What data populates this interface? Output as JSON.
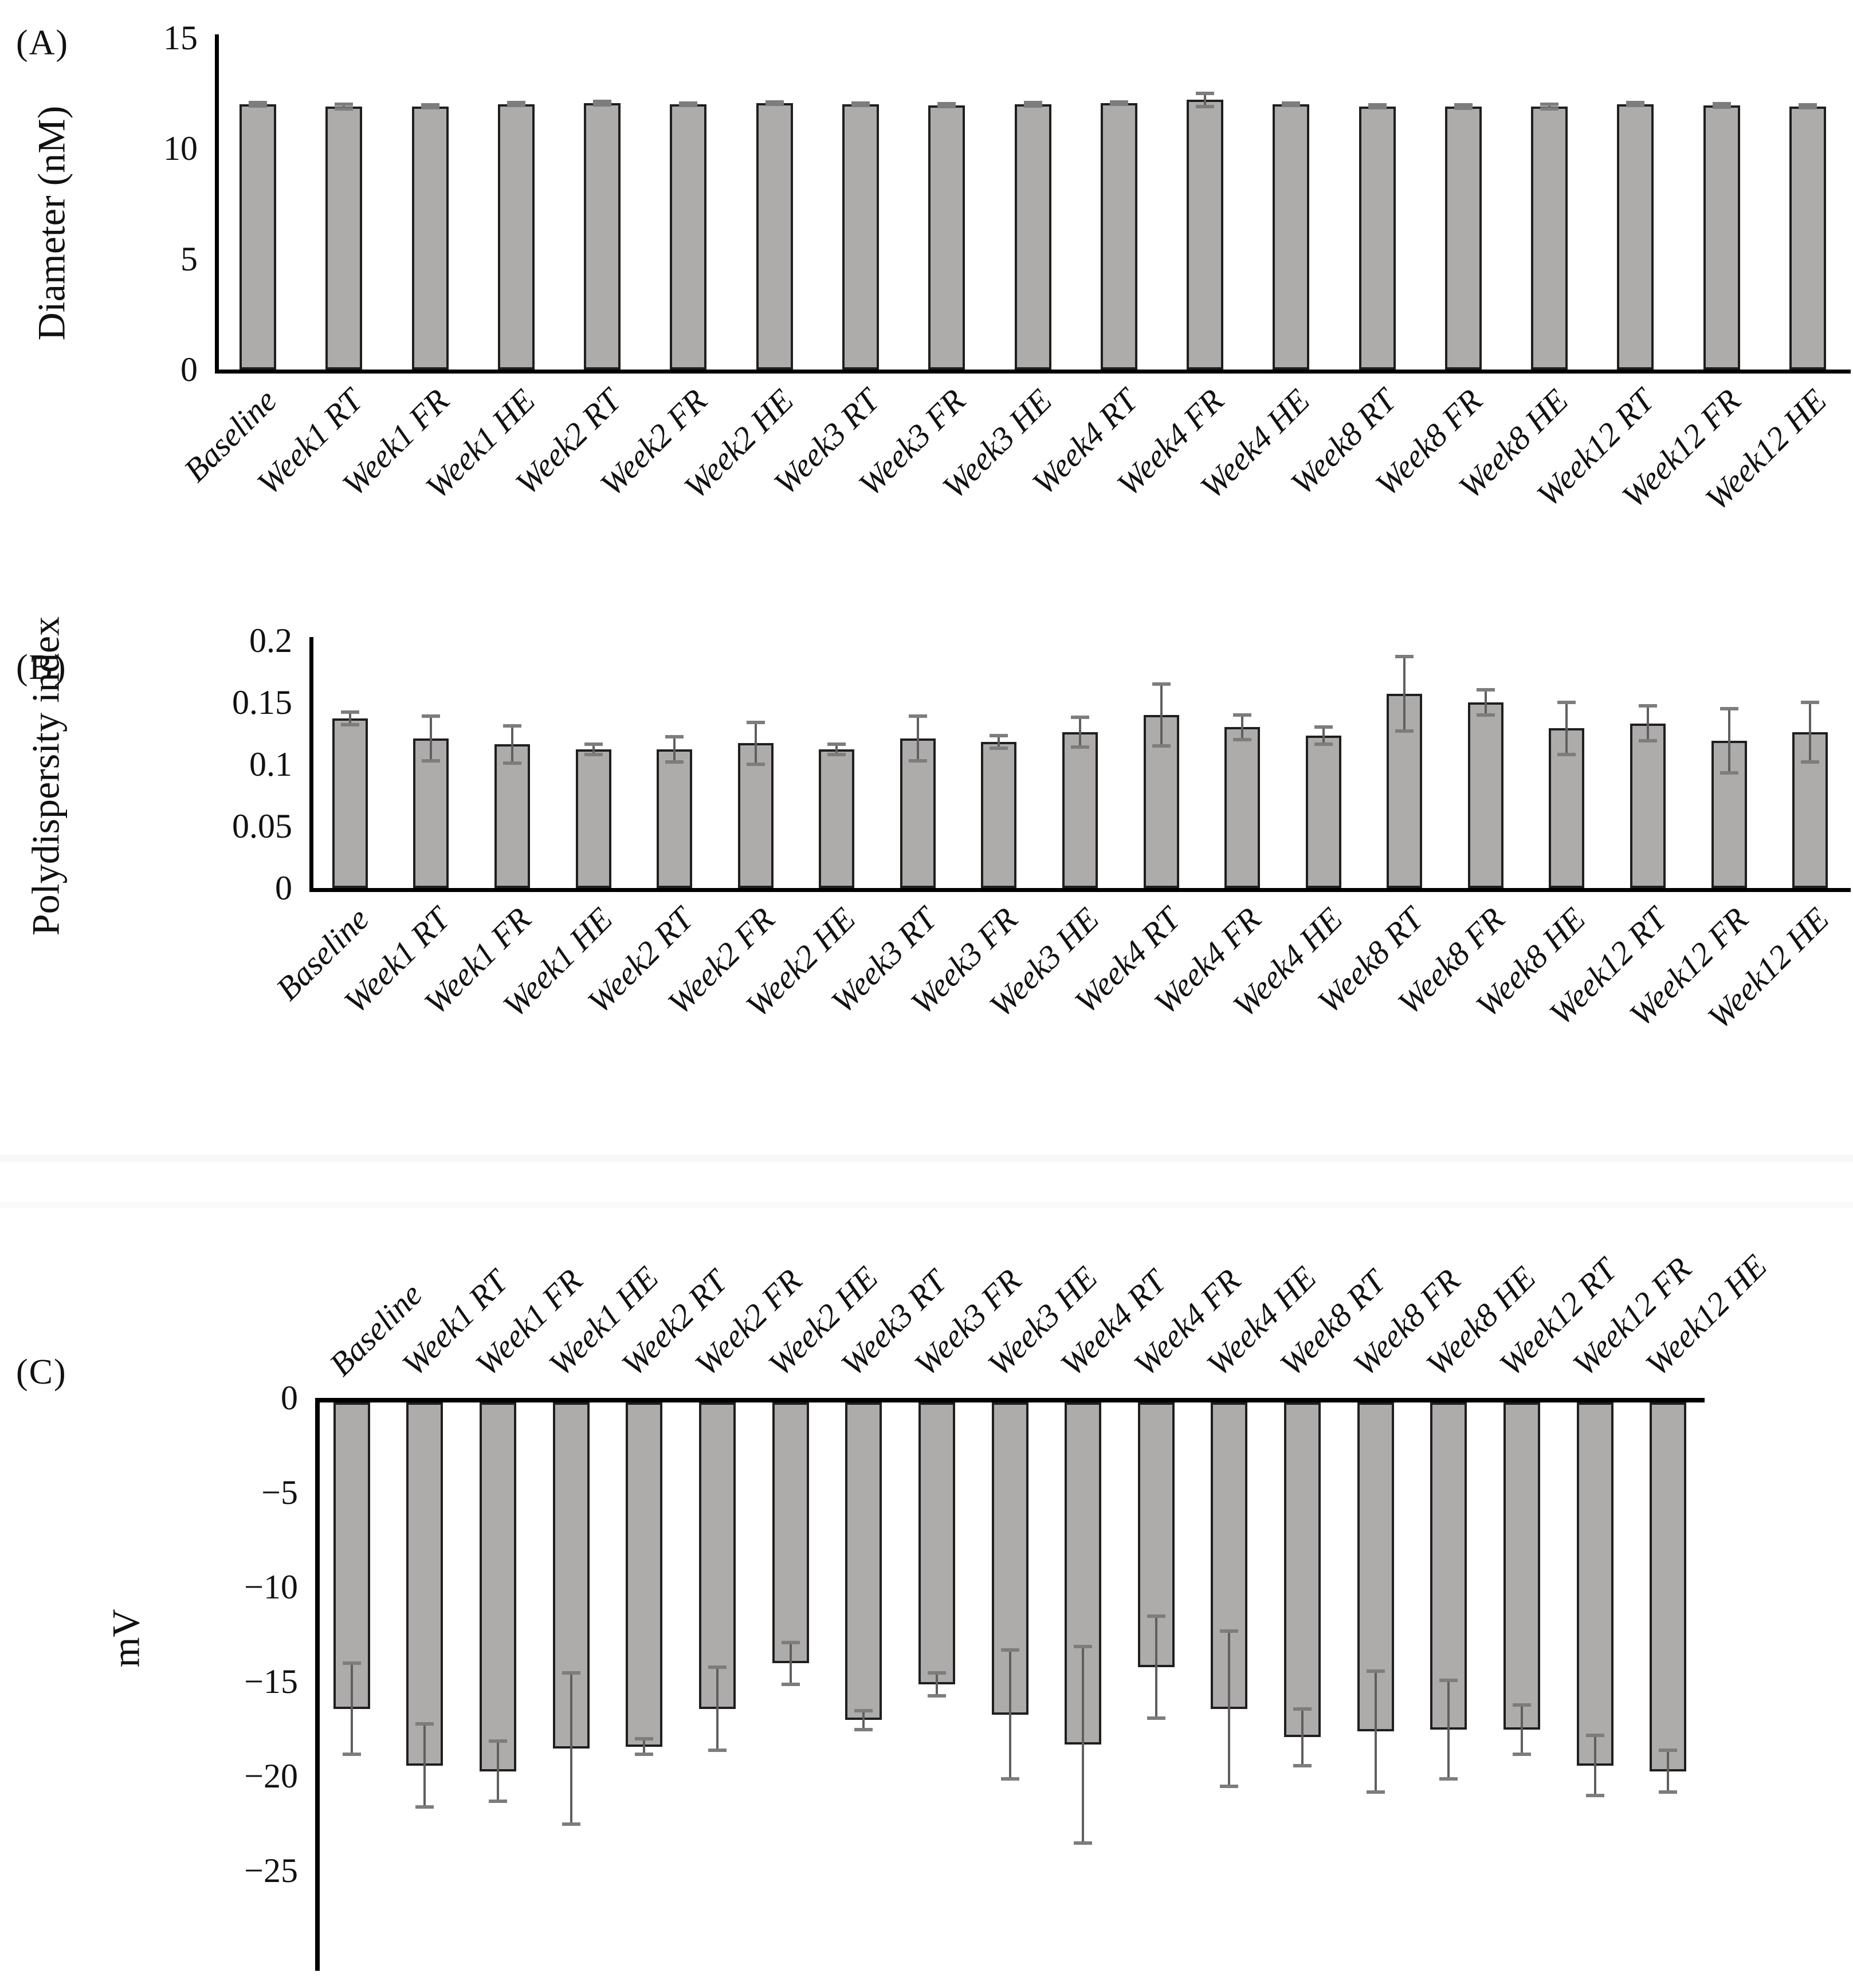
{
  "figure": {
    "panels": [
      {
        "letter": "(A)",
        "y_axis_label": "Diameter (nM)"
      },
      {
        "letter": "(B)",
        "y_axis_label": "Polydispersity index"
      },
      {
        "letter": "(C)",
        "y_axis_label": "mV"
      }
    ]
  },
  "chart_data": [
    {
      "type": "bar",
      "title": "",
      "ylabel": "Diameter (nM)",
      "ylim": [
        0,
        15
      ],
      "y_tick_labels": [
        "15",
        "10",
        "5",
        "0"
      ],
      "y_tick_values": [
        15,
        10,
        5,
        0
      ],
      "grid": false,
      "legend": "none",
      "x_label_position": "bottom",
      "bar_color": "#aeabab",
      "categories": [
        "Baseline",
        "Week1 RT",
        "Week1 FR",
        "Week1 HE",
        "Week2 RT",
        "Week2 FR",
        "Week2 HE",
        "Week3 RT",
        "Week3 FR",
        "Week3 HE",
        "Week4 RT",
        "Week4 FR",
        "Week4 HE",
        "Week8 RT",
        "Week8 FR",
        "Week8 HE",
        "Week12 RT",
        "Week12 FR",
        "Week12 HE"
      ],
      "values": [
        12,
        11.9,
        11.9,
        12,
        12.05,
        12,
        12.05,
        12,
        11.95,
        12,
        12.05,
        12.2,
        12,
        11.9,
        11.9,
        11.9,
        12,
        11.95,
        11.9
      ],
      "errors": [
        0.08,
        0.1,
        0.06,
        0.06,
        0.08,
        0.05,
        0.06,
        0.05,
        0.06,
        0.08,
        0.06,
        0.3,
        0.05,
        0.07,
        0.08,
        0.1,
        0.06,
        0.08,
        0.06
      ]
    },
    {
      "type": "bar",
      "title": "",
      "ylabel": "Polydispersity index",
      "ylim": [
        0,
        0.2
      ],
      "y_tick_labels": [
        "0.2",
        "0.15",
        "0.1",
        "0.05",
        "0"
      ],
      "y_tick_values": [
        0.2,
        0.15,
        0.1,
        0.05,
        0
      ],
      "grid": false,
      "legend": "none",
      "x_label_position": "bottom",
      "bar_color": "#aeabab",
      "categories": [
        "Baseline",
        "Week1 RT",
        "Week1 FR",
        "Week1 HE",
        "Week2 RT",
        "Week2 FR",
        "Week2 HE",
        "Week3 RT",
        "Week3 FR",
        "Week3 HE",
        "Week4 RT",
        "Week4 FR",
        "Week4 HE",
        "Week8 RT",
        "Week8 FR",
        "Week8 HE",
        "Week12 RT",
        "Week12 FR",
        "Week12 HE"
      ],
      "values": [
        0.137,
        0.121,
        0.116,
        0.112,
        0.112,
        0.117,
        0.112,
        0.121,
        0.118,
        0.126,
        0.14,
        0.13,
        0.123,
        0.157,
        0.15,
        0.129,
        0.133,
        0.119,
        0.126
      ],
      "errors": [
        0.005,
        0.018,
        0.015,
        0.004,
        0.01,
        0.017,
        0.004,
        0.018,
        0.005,
        0.012,
        0.025,
        0.01,
        0.007,
        0.03,
        0.01,
        0.021,
        0.014,
        0.026,
        0.024
      ]
    },
    {
      "type": "bar",
      "title": "",
      "ylabel": "mV",
      "ylim": [
        -25,
        0
      ],
      "y_tick_labels": [
        "0",
        "−5",
        "−10",
        "−15",
        "−20",
        "−25"
      ],
      "y_tick_values": [
        0,
        -5,
        -10,
        -15,
        -20,
        -25
      ],
      "grid": false,
      "legend": "none",
      "x_label_position": "top",
      "bar_color": "#aeabab",
      "categories": [
        "Baseline",
        "Week1 RT",
        "Week1 FR",
        "Week1 HE",
        "Week2 RT",
        "Week2 FR",
        "Week2 HE",
        "Week3 RT",
        "Week3 FR",
        "Week3 HE",
        "Week4 RT",
        "Week4 FR",
        "Week4 HE",
        "Week8 RT",
        "Week8 FR",
        "Week8 HE",
        "Week12 RT",
        "Week12 FR",
        "Week12 HE"
      ],
      "values": [
        -16.2,
        -19.2,
        -19.5,
        -18.3,
        -18.2,
        -16.2,
        -13.8,
        -16.8,
        -14.9,
        -16.5,
        -18.1,
        -14,
        -16.2,
        -17.7,
        -17.4,
        -17.3,
        -17.3,
        -19.2,
        -19.5
      ],
      "errors": [
        2.4,
        2.2,
        1.6,
        4,
        0.4,
        2.2,
        1.1,
        0.5,
        0.6,
        3.4,
        5.2,
        2.7,
        4.1,
        1.5,
        3.2,
        2.6,
        1.3,
        1.6,
        1.1
      ]
    }
  ]
}
